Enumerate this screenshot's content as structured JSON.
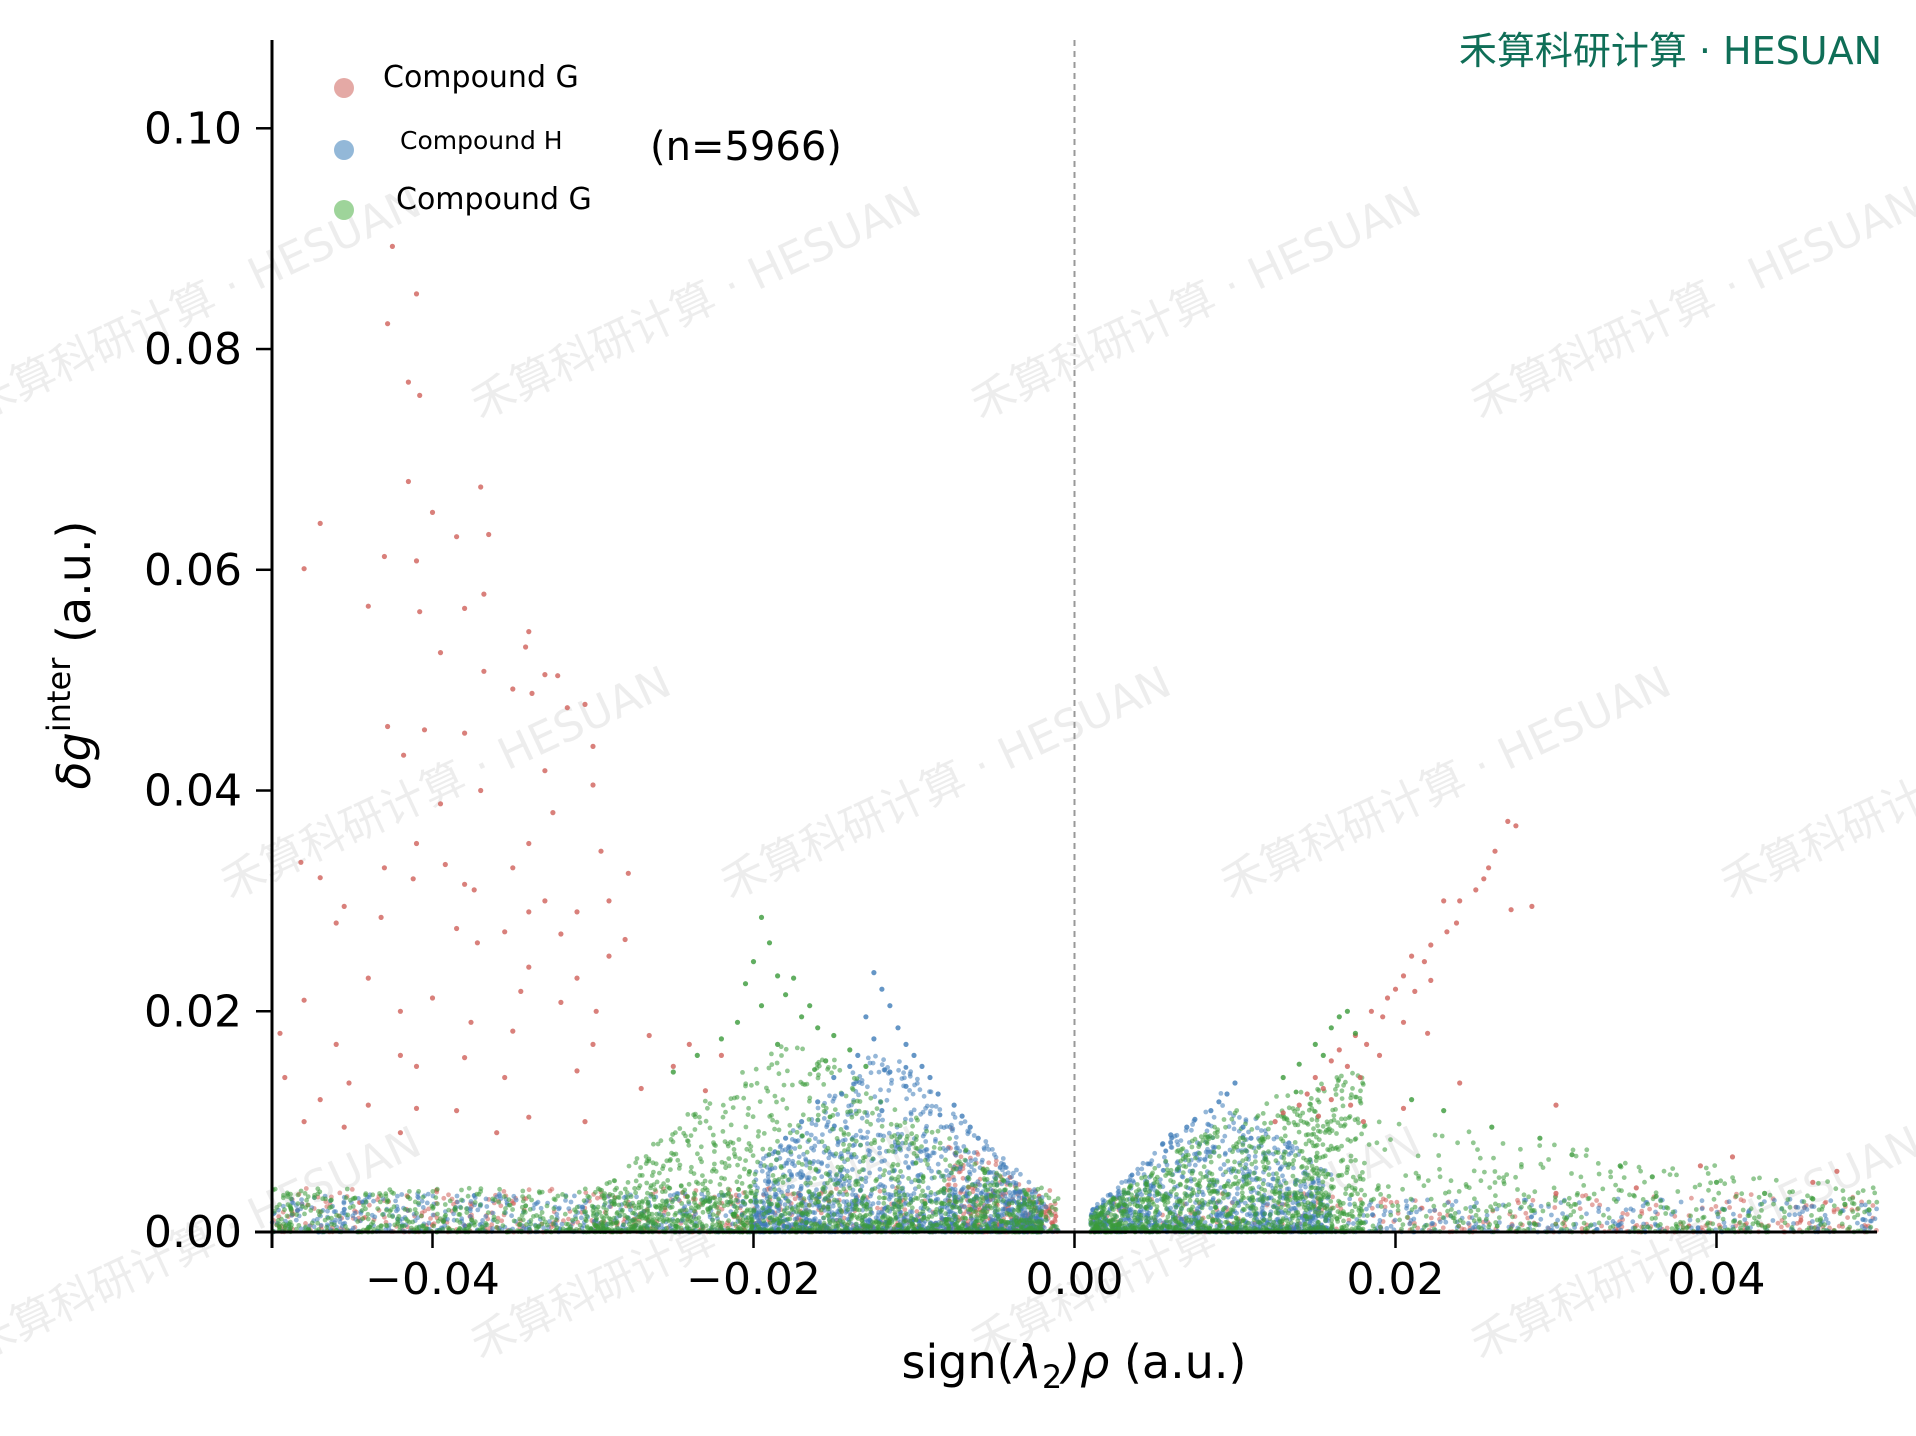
{
  "brand": {
    "text": "禾算科研计算 · HESUAN",
    "watermark_text": "禾算科研计算 · HESUAN",
    "color": "#0f6e57"
  },
  "chart_data": {
    "type": "scatter",
    "xlabel": "sign(λ2)ρ  (a.u.)",
    "ylabel": "δg^inter  (a.u.)",
    "xlim": [
      -0.05,
      0.05
    ],
    "ylim": [
      0.0,
      0.108
    ],
    "xticks": [
      -0.04,
      -0.02,
      0.0,
      0.02,
      0.04
    ],
    "xtick_labels": [
      "−0.04",
      "−0.02",
      "0.00",
      "0.02",
      "0.04"
    ],
    "yticks": [
      0.0,
      0.02,
      0.04,
      0.06,
      0.08,
      0.1
    ],
    "ytick_labels": [
      "0.00",
      "0.02",
      "0.04",
      "0.06",
      "0.08",
      "0.10"
    ],
    "annotation": "(n=5966)",
    "reference_line": {
      "x": 0.0,
      "style": "dashed",
      "color": "#999999"
    },
    "legend_position": "top-left",
    "grid": false,
    "series": [
      {
        "name": "Compound G",
        "color": "#d0605a",
        "legend_color": "#e4a9a5",
        "description_points": [
          [
            -0.0425,
            0.0893
          ],
          [
            -0.041,
            0.085
          ],
          [
            -0.0428,
            0.0823
          ],
          [
            -0.0415,
            0.077
          ],
          [
            -0.0408,
            0.0758
          ],
          [
            -0.0415,
            0.068
          ],
          [
            -0.037,
            0.0675
          ],
          [
            -0.047,
            0.0642
          ],
          [
            -0.04,
            0.0652
          ],
          [
            -0.0385,
            0.063
          ],
          [
            -0.0365,
            0.0632
          ],
          [
            -0.041,
            0.0608
          ],
          [
            -0.043,
            0.0612
          ],
          [
            -0.048,
            0.0601
          ],
          [
            -0.0368,
            0.0578
          ],
          [
            -0.044,
            0.0567
          ],
          [
            -0.038,
            0.0565
          ],
          [
            -0.0408,
            0.0562
          ],
          [
            -0.034,
            0.0544
          ],
          [
            -0.0395,
            0.0525
          ],
          [
            -0.0342,
            0.053
          ],
          [
            -0.0368,
            0.0508
          ],
          [
            -0.033,
            0.0505
          ],
          [
            -0.0322,
            0.0504
          ],
          [
            -0.035,
            0.0492
          ],
          [
            -0.0338,
            0.0488
          ],
          [
            -0.0316,
            0.0475
          ],
          [
            -0.0305,
            0.0478
          ],
          [
            -0.0428,
            0.0458
          ],
          [
            -0.0405,
            0.0455
          ],
          [
            -0.038,
            0.0452
          ],
          [
            -0.03,
            0.044
          ],
          [
            -0.033,
            0.0418
          ],
          [
            -0.0418,
            0.0432
          ],
          [
            -0.037,
            0.04
          ],
          [
            -0.03,
            0.0405
          ],
          [
            -0.0395,
            0.0388
          ],
          [
            -0.0325,
            0.038
          ],
          [
            -0.034,
            0.0352
          ],
          [
            -0.041,
            0.0352
          ],
          [
            -0.0295,
            0.0345
          ],
          [
            -0.0392,
            0.0333
          ],
          [
            -0.043,
            0.033
          ],
          [
            -0.035,
            0.033
          ],
          [
            -0.0278,
            0.0325
          ],
          [
            -0.0482,
            0.0335
          ],
          [
            -0.038,
            0.0315
          ],
          [
            -0.0412,
            0.032
          ],
          [
            -0.047,
            0.0321
          ],
          [
            -0.0374,
            0.031
          ],
          [
            -0.029,
            0.03
          ],
          [
            -0.0455,
            0.0295
          ],
          [
            -0.033,
            0.03
          ],
          [
            -0.034,
            0.029
          ],
          [
            -0.031,
            0.029
          ],
          [
            -0.046,
            0.028
          ],
          [
            -0.0385,
            0.0275
          ],
          [
            -0.0432,
            0.0285
          ],
          [
            -0.032,
            0.027
          ],
          [
            -0.0355,
            0.0272
          ],
          [
            -0.0372,
            0.0262
          ],
          [
            -0.028,
            0.0265
          ],
          [
            -0.029,
            0.025
          ],
          [
            -0.034,
            0.024
          ],
          [
            -0.031,
            0.023
          ],
          [
            -0.044,
            0.023
          ],
          [
            -0.0345,
            0.0218
          ],
          [
            -0.048,
            0.021
          ],
          [
            -0.04,
            0.0212
          ],
          [
            -0.032,
            0.0208
          ],
          [
            -0.0298,
            0.02
          ],
          [
            -0.042,
            0.02
          ],
          [
            -0.0376,
            0.019
          ],
          [
            -0.035,
            0.0182
          ],
          [
            -0.0495,
            0.018
          ],
          [
            -0.046,
            0.017
          ],
          [
            -0.042,
            0.016
          ],
          [
            -0.038,
            0.0158
          ],
          [
            -0.03,
            0.017
          ],
          [
            -0.0265,
            0.0178
          ],
          [
            -0.024,
            0.017
          ],
          [
            -0.022,
            0.016
          ],
          [
            -0.025,
            0.015
          ],
          [
            -0.031,
            0.0146
          ],
          [
            -0.0355,
            0.014
          ],
          [
            -0.041,
            0.015
          ],
          [
            -0.0492,
            0.014
          ],
          [
            -0.0452,
            0.0135
          ],
          [
            -0.027,
            0.013
          ],
          [
            -0.023,
            0.0128
          ],
          [
            -0.047,
            0.012
          ],
          [
            -0.044,
            0.0115
          ],
          [
            -0.041,
            0.0112
          ],
          [
            -0.0385,
            0.011
          ],
          [
            -0.034,
            0.0104
          ],
          [
            -0.0305,
            0.01
          ],
          [
            -0.048,
            0.01
          ],
          [
            -0.0455,
            0.0095
          ],
          [
            -0.042,
            0.009
          ],
          [
            -0.036,
            0.009
          ],
          [
            0.027,
            0.0372
          ],
          [
            0.0275,
            0.0368
          ],
          [
            0.0262,
            0.0345
          ],
          [
            0.0258,
            0.033
          ],
          [
            0.0255,
            0.032
          ],
          [
            0.025,
            0.031
          ],
          [
            0.024,
            0.03
          ],
          [
            0.023,
            0.03
          ],
          [
            0.0285,
            0.0295
          ],
          [
            0.0272,
            0.0292
          ],
          [
            0.0238,
            0.028
          ],
          [
            0.0232,
            0.0272
          ],
          [
            0.0222,
            0.026
          ],
          [
            0.0218,
            0.0245
          ],
          [
            0.021,
            0.025
          ],
          [
            0.0205,
            0.0232
          ],
          [
            0.0222,
            0.0228
          ],
          [
            0.02,
            0.022
          ],
          [
            0.0195,
            0.0212
          ],
          [
            0.0212,
            0.0218
          ],
          [
            0.0185,
            0.02
          ],
          [
            0.0192,
            0.0195
          ],
          [
            0.0205,
            0.019
          ],
          [
            0.022,
            0.018
          ],
          [
            0.0175,
            0.0178
          ],
          [
            0.0182,
            0.017
          ],
          [
            0.019,
            0.016
          ],
          [
            0.0165,
            0.0165
          ],
          [
            0.016,
            0.0155
          ],
          [
            0.017,
            0.015
          ],
          [
            0.0178,
            0.014
          ],
          [
            0.015,
            0.014
          ],
          [
            0.024,
            0.0135
          ],
          [
            0.0155,
            0.013
          ],
          [
            0.0145,
            0.0125
          ],
          [
            0.016,
            0.012
          ],
          [
            0.0172,
            0.0115
          ],
          [
            0.014,
            0.0115
          ],
          [
            0.013,
            0.0108
          ],
          [
            0.0152,
            0.0105
          ],
          [
            0.0125,
            0.01
          ],
          [
            0.018,
            0.01
          ],
          [
            0.03,
            0.0115
          ],
          [
            0.0205,
            0.0112
          ],
          [
            0.041,
            0.0068
          ],
          [
            0.046,
            0.0045
          ],
          [
            0.0475,
            0.0055
          ],
          [
            0.039,
            0.006
          ],
          [
            0.035,
            0.004
          ],
          [
            0.03,
            0.0035
          ]
        ]
      },
      {
        "name": "Compound H",
        "color": "#3e7cb8",
        "legend_color": "#93b8d8",
        "description_points": [
          [
            -0.0125,
            0.0235
          ],
          [
            -0.012,
            0.022
          ],
          [
            -0.0115,
            0.0205
          ],
          [
            -0.013,
            0.0195
          ],
          [
            -0.011,
            0.0185
          ],
          [
            -0.0125,
            0.0175
          ],
          [
            -0.0105,
            0.017
          ],
          [
            -0.0135,
            0.016
          ],
          [
            -0.01,
            0.016
          ],
          [
            -0.014,
            0.015
          ],
          [
            -0.0095,
            0.015
          ],
          [
            -0.0115,
            0.0145
          ],
          [
            -0.015,
            0.014
          ],
          [
            -0.009,
            0.014
          ],
          [
            -0.0105,
            0.0132
          ],
          [
            -0.0085,
            0.0125
          ],
          [
            -0.0145,
            0.0125
          ],
          [
            -0.016,
            0.0118
          ],
          [
            -0.0075,
            0.0115
          ],
          [
            -0.012,
            0.011
          ],
          [
            -0.007,
            0.0105
          ],
          [
            -0.0065,
            0.0095
          ],
          [
            -0.017,
            0.01
          ],
          [
            -0.006,
            0.0085
          ],
          [
            -0.018,
            0.0085
          ],
          [
            0.01,
            0.0135
          ],
          [
            0.0095,
            0.0125
          ],
          [
            0.009,
            0.0118
          ],
          [
            0.0085,
            0.011
          ],
          [
            0.0075,
            0.0102
          ],
          [
            0.007,
            0.0095
          ],
          [
            0.006,
            0.0088
          ],
          [
            0.0105,
            0.0095
          ],
          [
            0.0055,
            0.008
          ],
          [
            0.011,
            0.0085
          ]
        ]
      },
      {
        "name": "Compound G",
        "color": "#3a9a3a",
        "legend_color": "#9ed49a",
        "description_points": [
          [
            -0.0195,
            0.0285
          ],
          [
            -0.019,
            0.0262
          ],
          [
            -0.02,
            0.0245
          ],
          [
            -0.0185,
            0.0232
          ],
          [
            -0.0175,
            0.023
          ],
          [
            -0.0205,
            0.0225
          ],
          [
            -0.018,
            0.0215
          ],
          [
            -0.0165,
            0.0205
          ],
          [
            -0.0195,
            0.0205
          ],
          [
            -0.017,
            0.0195
          ],
          [
            -0.021,
            0.019
          ],
          [
            -0.016,
            0.0185
          ],
          [
            -0.015,
            0.0178
          ],
          [
            -0.022,
            0.0175
          ],
          [
            -0.0185,
            0.017
          ],
          [
            -0.014,
            0.0165
          ],
          [
            -0.0235,
            0.016
          ],
          [
            -0.0155,
            0.0155
          ],
          [
            -0.013,
            0.015
          ],
          [
            -0.025,
            0.0145
          ],
          [
            0.017,
            0.02
          ],
          [
            0.0165,
            0.0195
          ],
          [
            0.016,
            0.0185
          ],
          [
            0.0175,
            0.018
          ],
          [
            0.015,
            0.017
          ],
          [
            0.0155,
            0.016
          ],
          [
            0.014,
            0.0152
          ],
          [
            0.013,
            0.014
          ],
          [
            0.021,
            0.012
          ],
          [
            0.023,
            0.011
          ],
          [
            0.026,
            0.0095
          ],
          [
            0.029,
            0.0085
          ],
          [
            0.031,
            0.007
          ],
          [
            0.034,
            0.006
          ],
          [
            0.036,
            0.005
          ],
          [
            0.04,
            0.0045
          ],
          [
            0.043,
            0.0035
          ],
          [
            0.046,
            0.003
          ],
          [
            0.048,
            0.0025
          ],
          [
            0.0495,
            0.002
          ]
        ]
      }
    ]
  }
}
